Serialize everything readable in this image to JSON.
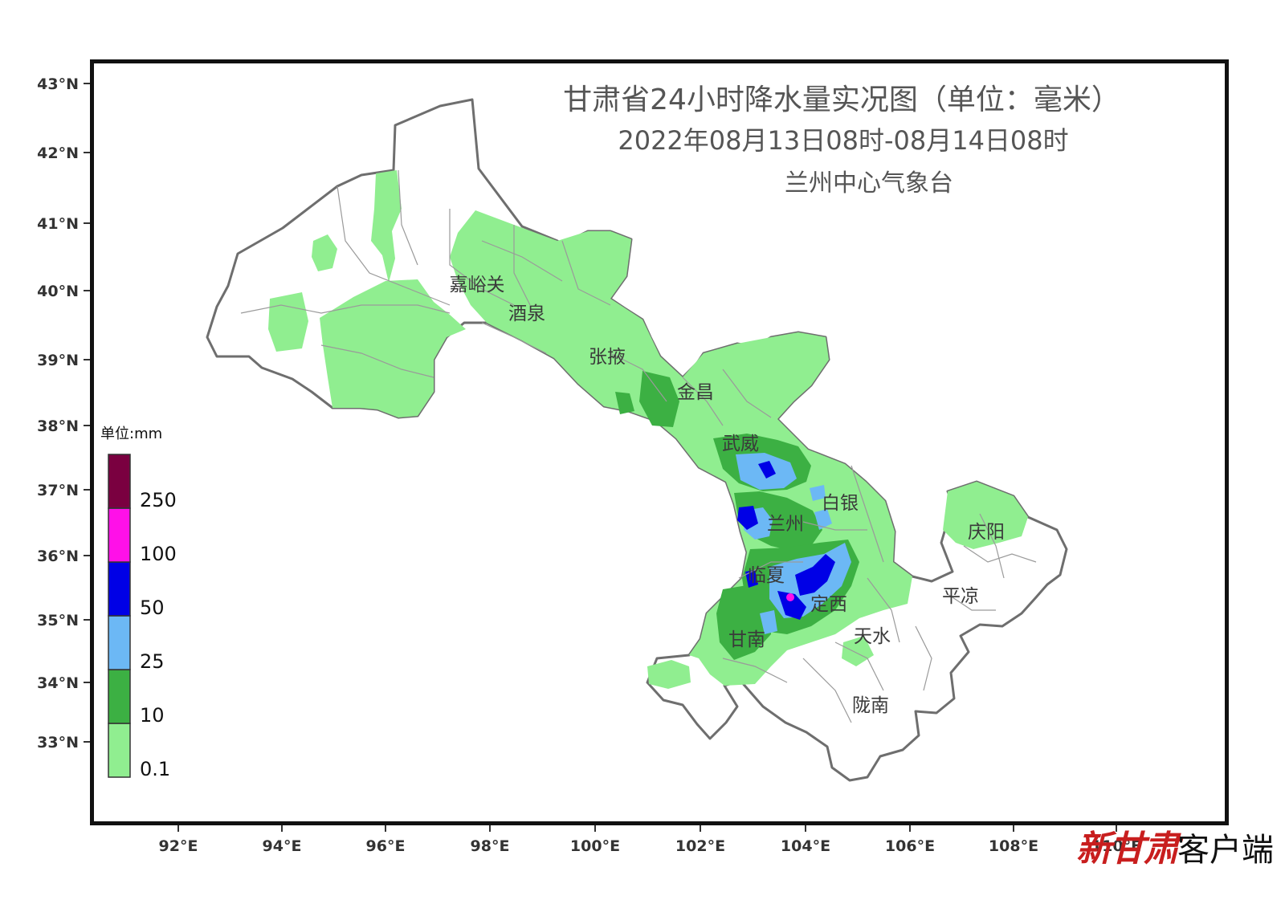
{
  "title": {
    "line1": "甘肃省24小时降水量实况图（单位：毫米）",
    "line2": "2022年08月13日08时-08月14日08时",
    "line3": "兰州中心气象台"
  },
  "axes": {
    "lat_labels": [
      "43°N",
      "42°N",
      "41°N",
      "40°N",
      "39°N",
      "38°N",
      "37°N",
      "36°N",
      "35°N",
      "34°N",
      "33°N"
    ],
    "lon_labels": [
      "92°E",
      "94°E",
      "96°E",
      "98°E",
      "100°E",
      "102°E",
      "104°E",
      "106°E",
      "108°E",
      "110°E"
    ]
  },
  "legend": {
    "unit": "单位:mm",
    "bins": [
      {
        "label": "0.1",
        "color": "#90ee90"
      },
      {
        "label": "10",
        "color": "#3cb043"
      },
      {
        "label": "25",
        "color": "#6cb8f5"
      },
      {
        "label": "50",
        "color": "#0000e6"
      },
      {
        "label": "100",
        "color": "#ff10e8"
      },
      {
        "label": "250",
        "color": "#7a0040"
      }
    ]
  },
  "cities": [
    {
      "name": "嘉峪关"
    },
    {
      "name": "酒泉"
    },
    {
      "name": "张掖"
    },
    {
      "name": "金昌"
    },
    {
      "name": "武威"
    },
    {
      "name": "兰州"
    },
    {
      "name": "白银"
    },
    {
      "name": "临夏"
    },
    {
      "name": "定西"
    },
    {
      "name": "甘南"
    },
    {
      "name": "天水"
    },
    {
      "name": "陇南"
    },
    {
      "name": "平凉"
    },
    {
      "name": "庆阳"
    }
  ],
  "logo": {
    "brand": "新甘肃",
    "suffix": "客户端"
  }
}
